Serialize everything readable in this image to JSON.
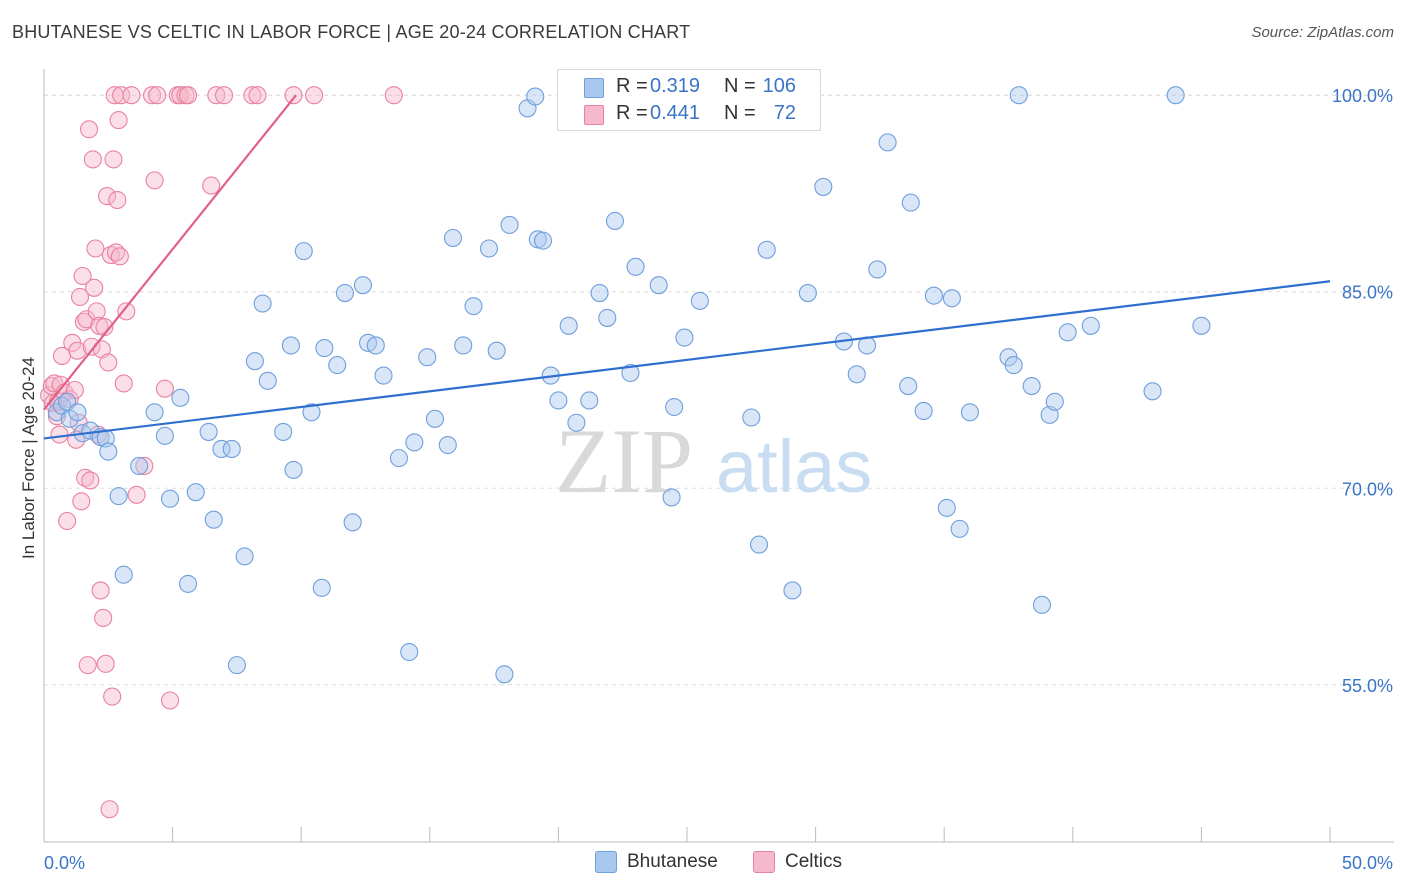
{
  "title": "BHUTANESE VS CELTIC IN LABOR FORCE | AGE 20-24 CORRELATION CHART",
  "source": "Source: ZipAtlas.com",
  "watermark": {
    "zip": "ZIP",
    "atlas": "atlas"
  },
  "legend": {
    "series": [
      {
        "r_label": "R =",
        "r_value": "0.319",
        "n_label": "N =",
        "n_value": "106"
      },
      {
        "r_label": "R =",
        "r_value": "0.441",
        "n_label": "N =",
        "n_value": "72"
      }
    ]
  },
  "bottom_legend": {
    "bhutanese": "Bhutanese",
    "celtics": "Celtics"
  },
  "colors": {
    "bhutanese_fill": "#a9c8f0",
    "bhutanese_stroke": "#6f9fdc",
    "bhutanese_line": "#2f6fcf",
    "celtics_fill": "#f6b8cc",
    "celtics_stroke": "#e9829f",
    "celtics_line": "#e0608a",
    "axis_label": "#3a74c8",
    "grid": "#dddddd"
  },
  "chart_data": {
    "type": "scatter",
    "title": "BHUTANESE VS CELTIC IN LABOR FORCE | AGE 20-24 CORRELATION CHART",
    "xlabel": "",
    "ylabel": "In Labor Force | Age 20-24",
    "x_tick_labels": [
      "0.0%",
      "50.0%"
    ],
    "y_tick_labels": [
      "100.0%",
      "85.0%",
      "70.0%",
      "55.0%"
    ],
    "xlim": [
      0,
      50
    ],
    "ylim": [
      43,
      102
    ],
    "grid": true,
    "legend_position": "top-center",
    "series": [
      {
        "name": "Bhutanese",
        "trend": {
          "x": [
            0,
            50
          ],
          "y": [
            73.8,
            85.8
          ]
        },
        "points": [
          [
            0.5,
            75.8
          ],
          [
            0.7,
            76.3
          ],
          [
            0.9,
            76.6
          ],
          [
            1.0,
            75.3
          ],
          [
            1.3,
            75.8
          ],
          [
            1.5,
            74.2
          ],
          [
            1.8,
            74.4
          ],
          [
            2.2,
            73.9
          ],
          [
            2.4,
            73.8
          ],
          [
            2.5,
            72.8
          ],
          [
            2.9,
            69.4
          ],
          [
            3.1,
            63.4
          ],
          [
            3.7,
            71.7
          ],
          [
            4.3,
            75.8
          ],
          [
            4.7,
            74.0
          ],
          [
            4.9,
            69.2
          ],
          [
            5.3,
            76.9
          ],
          [
            5.6,
            62.7
          ],
          [
            5.9,
            69.7
          ],
          [
            6.4,
            74.3
          ],
          [
            6.6,
            67.6
          ],
          [
            6.9,
            73.0
          ],
          [
            7.3,
            73.0
          ],
          [
            7.5,
            56.5
          ],
          [
            7.8,
            64.8
          ],
          [
            8.2,
            79.7
          ],
          [
            8.5,
            84.1
          ],
          [
            8.7,
            78.2
          ],
          [
            9.3,
            74.3
          ],
          [
            9.6,
            80.9
          ],
          [
            9.7,
            71.4
          ],
          [
            10.1,
            88.1
          ],
          [
            10.4,
            75.8
          ],
          [
            10.8,
            62.4
          ],
          [
            10.9,
            80.7
          ],
          [
            11.4,
            79.4
          ],
          [
            11.7,
            84.9
          ],
          [
            12.0,
            67.4
          ],
          [
            12.4,
            85.5
          ],
          [
            12.6,
            81.1
          ],
          [
            12.9,
            80.9
          ],
          [
            13.2,
            78.6
          ],
          [
            13.8,
            72.3
          ],
          [
            14.2,
            57.5
          ],
          [
            14.4,
            73.5
          ],
          [
            14.9,
            80.0
          ],
          [
            15.2,
            75.3
          ],
          [
            15.7,
            73.3
          ],
          [
            15.9,
            89.1
          ],
          [
            16.3,
            80.9
          ],
          [
            16.7,
            83.9
          ],
          [
            17.3,
            88.3
          ],
          [
            17.6,
            80.5
          ],
          [
            17.9,
            55.8
          ],
          [
            18.1,
            90.1
          ],
          [
            18.8,
            99.0
          ],
          [
            19.2,
            89.0
          ],
          [
            19.1,
            99.9
          ],
          [
            19.4,
            88.9
          ],
          [
            19.7,
            78.6
          ],
          [
            20.0,
            76.7
          ],
          [
            20.4,
            82.4
          ],
          [
            20.7,
            75.0
          ],
          [
            21.2,
            76.7
          ],
          [
            21.6,
            84.9
          ],
          [
            21.9,
            83.0
          ],
          [
            22.2,
            90.4
          ],
          [
            22.8,
            78.8
          ],
          [
            23.0,
            86.9
          ],
          [
            23.9,
            85.5
          ],
          [
            24.4,
            69.3
          ],
          [
            24.5,
            76.2
          ],
          [
            24.9,
            81.5
          ],
          [
            25.5,
            84.3
          ],
          [
            26.0,
            99.8
          ],
          [
            27.5,
            75.4
          ],
          [
            27.8,
            65.7
          ],
          [
            28.1,
            88.2
          ],
          [
            29.1,
            62.2
          ],
          [
            29.7,
            84.9
          ],
          [
            30.3,
            93.0
          ],
          [
            31.1,
            81.2
          ],
          [
            31.6,
            78.7
          ],
          [
            32.0,
            80.9
          ],
          [
            32.4,
            86.7
          ],
          [
            32.8,
            96.4
          ],
          [
            33.6,
            77.8
          ],
          [
            33.7,
            91.8
          ],
          [
            34.2,
            75.9
          ],
          [
            34.6,
            84.7
          ],
          [
            35.1,
            68.5
          ],
          [
            35.3,
            84.5
          ],
          [
            35.6,
            66.9
          ],
          [
            36.0,
            75.8
          ],
          [
            37.5,
            80.0
          ],
          [
            37.7,
            79.4
          ],
          [
            37.9,
            100.0
          ],
          [
            38.4,
            77.8
          ],
          [
            38.8,
            61.1
          ],
          [
            39.1,
            75.6
          ],
          [
            39.3,
            76.6
          ],
          [
            39.8,
            81.9
          ],
          [
            40.7,
            82.4
          ],
          [
            43.1,
            77.4
          ],
          [
            44.0,
            100.0
          ],
          [
            45.0,
            82.4
          ]
        ]
      },
      {
        "name": "Celtics",
        "trend": {
          "x": [
            0,
            9.8
          ],
          "y": [
            76.0,
            100.0
          ]
        },
        "points": [
          [
            0.2,
            77.1
          ],
          [
            0.3,
            77.8
          ],
          [
            0.35,
            76.5
          ],
          [
            0.4,
            78.0
          ],
          [
            0.5,
            75.5
          ],
          [
            0.55,
            76.6
          ],
          [
            0.6,
            74.1
          ],
          [
            0.65,
            77.9
          ],
          [
            0.7,
            80.1
          ],
          [
            0.8,
            77.3
          ],
          [
            0.9,
            67.5
          ],
          [
            1.0,
            76.8
          ],
          [
            1.1,
            81.1
          ],
          [
            1.2,
            77.5
          ],
          [
            1.25,
            73.7
          ],
          [
            1.3,
            80.5
          ],
          [
            1.35,
            75.0
          ],
          [
            1.4,
            84.6
          ],
          [
            1.45,
            69.0
          ],
          [
            1.5,
            86.2
          ],
          [
            1.55,
            82.7
          ],
          [
            1.6,
            70.8
          ],
          [
            1.65,
            82.9
          ],
          [
            1.7,
            56.5
          ],
          [
            1.75,
            97.4
          ],
          [
            1.8,
            70.6
          ],
          [
            1.85,
            80.8
          ],
          [
            1.9,
            95.1
          ],
          [
            1.95,
            85.3
          ],
          [
            2.0,
            88.3
          ],
          [
            2.05,
            83.5
          ],
          [
            2.1,
            74.1
          ],
          [
            2.15,
            82.4
          ],
          [
            2.2,
            62.2
          ],
          [
            2.25,
            80.6
          ],
          [
            2.3,
            60.1
          ],
          [
            2.35,
            82.3
          ],
          [
            2.4,
            56.6
          ],
          [
            2.45,
            92.3
          ],
          [
            2.5,
            79.6
          ],
          [
            2.55,
            45.5
          ],
          [
            2.6,
            87.8
          ],
          [
            2.65,
            54.1
          ],
          [
            2.7,
            95.1
          ],
          [
            2.75,
            100.0
          ],
          [
            2.8,
            88.0
          ],
          [
            2.85,
            92.0
          ],
          [
            2.9,
            98.1
          ],
          [
            2.95,
            87.7
          ],
          [
            3.0,
            100.0
          ],
          [
            3.1,
            78.0
          ],
          [
            3.2,
            83.5
          ],
          [
            3.4,
            100.0
          ],
          [
            3.6,
            69.5
          ],
          [
            3.9,
            71.7
          ],
          [
            4.2,
            100.0
          ],
          [
            4.3,
            93.5
          ],
          [
            4.4,
            100.0
          ],
          [
            4.7,
            77.6
          ],
          [
            4.9,
            53.8
          ],
          [
            5.2,
            100.0
          ],
          [
            5.3,
            100.0
          ],
          [
            5.5,
            100.0
          ],
          [
            5.6,
            100.0
          ],
          [
            6.5,
            93.1
          ],
          [
            6.7,
            100.0
          ],
          [
            7.0,
            100.0
          ],
          [
            8.1,
            100.0
          ],
          [
            8.3,
            100.0
          ],
          [
            9.7,
            100.0
          ],
          [
            10.5,
            100.0
          ],
          [
            13.6,
            100.0
          ]
        ]
      }
    ]
  }
}
